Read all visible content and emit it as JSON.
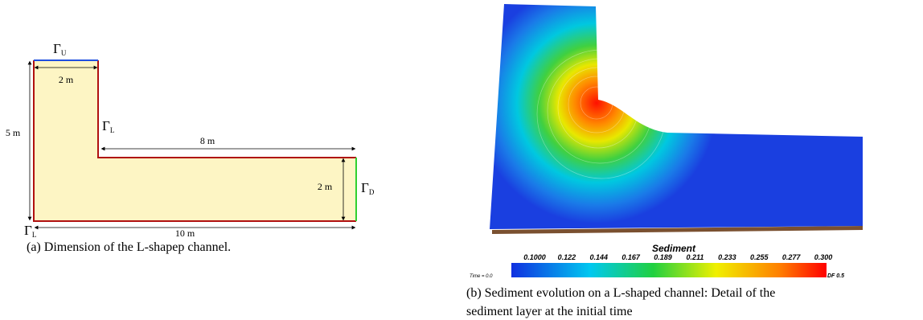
{
  "panel_a": {
    "gamma_top": {
      "symbol": "Γ",
      "sub": "U"
    },
    "gamma_step": {
      "symbol": "Γ",
      "sub": "L"
    },
    "gamma_right": {
      "symbol": "Γ",
      "sub": "D"
    },
    "gamma_corner": {
      "symbol": "Γ",
      "sub": "L"
    },
    "dim_top_width": "2 m",
    "dim_height": "5 m",
    "dim_arm_length": "8 m",
    "dim_outlet_width": "2 m",
    "dim_total_length": "10 m",
    "caption": "(a) Dimension of the L-shapep channel."
  },
  "panel_b": {
    "colorbar": {
      "title": "Sediment",
      "ticks": [
        "0.1000",
        "0.122",
        "0.144",
        "0.167",
        "0.189",
        "0.211",
        "0.233",
        "0.255",
        "0.277",
        "0.300"
      ]
    },
    "time_label": "Time = 0.0",
    "df_label": "DF 0.5",
    "caption": [
      "(b) Sediment evolution on a L-shaped channel: Detail of the",
      "sediment layer at the initial time"
    ]
  }
}
